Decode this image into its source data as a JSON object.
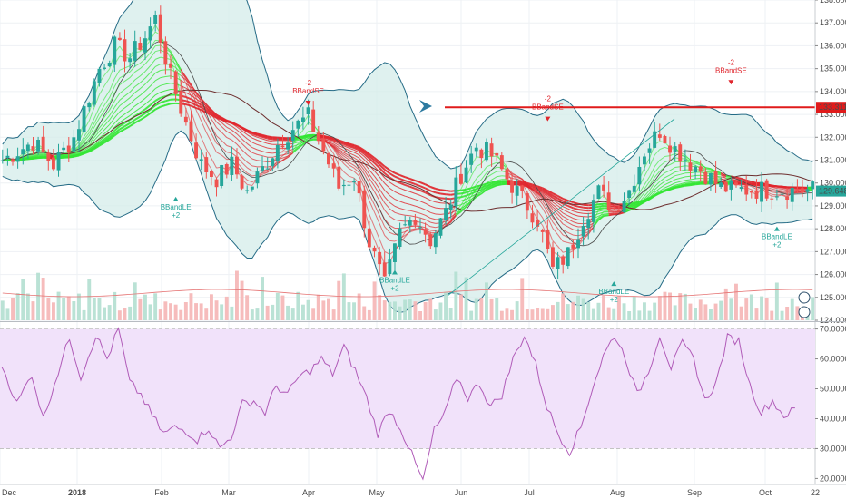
{
  "chart_data": [
    {
      "type": "candlestick",
      "panel": "price",
      "x_labels": [
        "Dec",
        "2018",
        "Feb",
        "Mar",
        "Apr",
        "May",
        "Jun",
        "Jul",
        "Aug",
        "Sep",
        "Oct",
        "22"
      ],
      "y_ticks": [
        "124.000",
        "125.000",
        "126.000",
        "127.000",
        "128.000",
        "129.000",
        "130.000",
        "131.000",
        "132.000",
        "133.000",
        "134.000",
        "135.000",
        "136.000",
        "137.000",
        "138.000"
      ],
      "ylim": [
        124,
        138
      ],
      "price_path": [
        [
          0,
          131.0
        ],
        [
          6,
          131.8
        ],
        [
          10,
          130.8
        ],
        [
          14,
          132.0
        ],
        [
          17,
          133.8
        ],
        [
          19,
          135.0
        ],
        [
          22,
          136.0
        ],
        [
          25,
          135.5
        ],
        [
          28,
          136.4
        ],
        [
          30,
          137.2
        ],
        [
          33,
          134.6
        ],
        [
          36,
          132.6
        ],
        [
          39,
          130.8
        ],
        [
          42,
          130.2
        ],
        [
          45,
          130.8
        ],
        [
          48,
          129.6
        ],
        [
          51,
          130.6
        ],
        [
          54,
          131.7
        ],
        [
          57,
          132.4
        ],
        [
          60,
          132.9
        ],
        [
          63,
          131.4
        ],
        [
          66,
          129.8
        ],
        [
          69,
          130.3
        ],
        [
          72,
          127.4
        ],
        [
          75,
          125.5
        ],
        [
          78,
          127.8
        ],
        [
          81,
          128.6
        ],
        [
          84,
          127.5
        ],
        [
          87,
          128.7
        ],
        [
          90,
          130.4
        ],
        [
          93,
          131.6
        ],
        [
          96,
          131.2
        ],
        [
          99,
          130.2
        ],
        [
          102,
          129.3
        ],
        [
          105,
          128.4
        ],
        [
          108,
          126.2
        ],
        [
          111,
          126.9
        ],
        [
          114,
          128.5
        ],
        [
          117,
          129.6
        ],
        [
          120,
          128.9
        ],
        [
          123,
          129.7
        ],
        [
          126,
          131.4
        ],
        [
          129,
          132.3
        ],
        [
          132,
          131.5
        ],
        [
          135,
          130.9
        ],
        [
          138,
          130.4
        ],
        [
          141,
          129.8
        ],
        [
          144,
          129.7
        ]
      ],
      "current_price": "129.648",
      "resistance_label": "133.311",
      "resistance_value": 133.311,
      "annotations": [
        {
          "text": "BBandLE",
          "sub": "+2",
          "i": 34,
          "price": 129.4,
          "direction": "up",
          "color": "#26a69a"
        },
        {
          "text": "BBandSE",
          "sub": "-2",
          "i": 60,
          "price": 133.4,
          "direction": "down",
          "color": "#e0272e"
        },
        {
          "text": "BBandLE",
          "sub": "+2",
          "i": 77,
          "price": 126.2,
          "direction": "up",
          "color": "#26a69a"
        },
        {
          "text": "BBandSE",
          "sub": "-2",
          "i": 107,
          "price": 132.7,
          "direction": "down",
          "color": "#e0272e"
        },
        {
          "text": "BBandLE",
          "sub": "+2",
          "i": 120,
          "price": 125.7,
          "direction": "up",
          "color": "#26a69a"
        },
        {
          "text": "BBandSE",
          "sub": "-2",
          "i": 143,
          "price": 134.3,
          "direction": "down",
          "color": "#e0272e"
        },
        {
          "text": "BBandLE",
          "sub": "+2",
          "i": 152,
          "price": 128.1,
          "direction": "up",
          "color": "#26a69a"
        }
      ],
      "colors": {
        "up": "#26a69a",
        "down": "#ef5350",
        "ribbon_up": "#33e633",
        "ribbon_down": "#e0272e",
        "band_fill": "#d4ece9",
        "band_line": "#256b86",
        "resistance": "#e01b1b",
        "volume_up": "#b2dfd0",
        "volume_down": "#f5b5b5",
        "price_tag": "#26a69a"
      }
    },
    {
      "type": "line",
      "panel": "oscillator",
      "y_ticks": [
        "20.0000",
        "30.0000",
        "40.0000",
        "50.0000",
        "60.0000",
        "70.0000"
      ],
      "ylim": [
        18,
        72
      ],
      "band": [
        30,
        70
      ],
      "series_path": [
        [
          0,
          58
        ],
        [
          4,
          45
        ],
        [
          8,
          55
        ],
        [
          11,
          40
        ],
        [
          14,
          52
        ],
        [
          18,
          67
        ],
        [
          21,
          54
        ],
        [
          25,
          68
        ],
        [
          28,
          60
        ],
        [
          31,
          70
        ],
        [
          34,
          52
        ],
        [
          37,
          48
        ],
        [
          40,
          41
        ],
        [
          43,
          35
        ],
        [
          46,
          37
        ],
        [
          49,
          36
        ],
        [
          52,
          33
        ],
        [
          55,
          37
        ],
        [
          58,
          30
        ],
        [
          61,
          34
        ],
        [
          64,
          45
        ],
        [
          67,
          46
        ],
        [
          70,
          42
        ],
        [
          73,
          51
        ],
        [
          76,
          48
        ],
        [
          79,
          54
        ],
        [
          82,
          56
        ],
        [
          85,
          60
        ],
        [
          88,
          55
        ],
        [
          91,
          64
        ],
        [
          94,
          56
        ],
        [
          97,
          47
        ],
        [
          100,
          35
        ],
        [
          103,
          43
        ],
        [
          106,
          37
        ],
        [
          109,
          28
        ],
        [
          112,
          19
        ],
        [
          115,
          36
        ],
        [
          118,
          42
        ],
        [
          121,
          54
        ],
        [
          124,
          47
        ],
        [
          127,
          52
        ],
        [
          130,
          44
        ],
        [
          133,
          48
        ],
        [
          136,
          60
        ],
        [
          139,
          68
        ],
        [
          142,
          58
        ],
        [
          145,
          44
        ],
        [
          148,
          35
        ],
        [
          151,
          29
        ],
        [
          154,
          37
        ],
        [
          157,
          50
        ],
        [
          160,
          61
        ],
        [
          163,
          68
        ],
        [
          166,
          60
        ],
        [
          169,
          48
        ],
        [
          172,
          56
        ],
        [
          175,
          68
        ],
        [
          178,
          57
        ],
        [
          181,
          65
        ],
        [
          184,
          60
        ],
        [
          187,
          46
        ],
        [
          190,
          52
        ],
        [
          193,
          67
        ],
        [
          196,
          66
        ],
        [
          199,
          51
        ],
        [
          202,
          42
        ],
        [
          205,
          46
        ],
        [
          208,
          41
        ],
        [
          211,
          43
        ]
      ],
      "colors": {
        "line": "#b05bb8",
        "fill": "#f1e2fa",
        "band_border": "#bbbbbb"
      }
    }
  ]
}
